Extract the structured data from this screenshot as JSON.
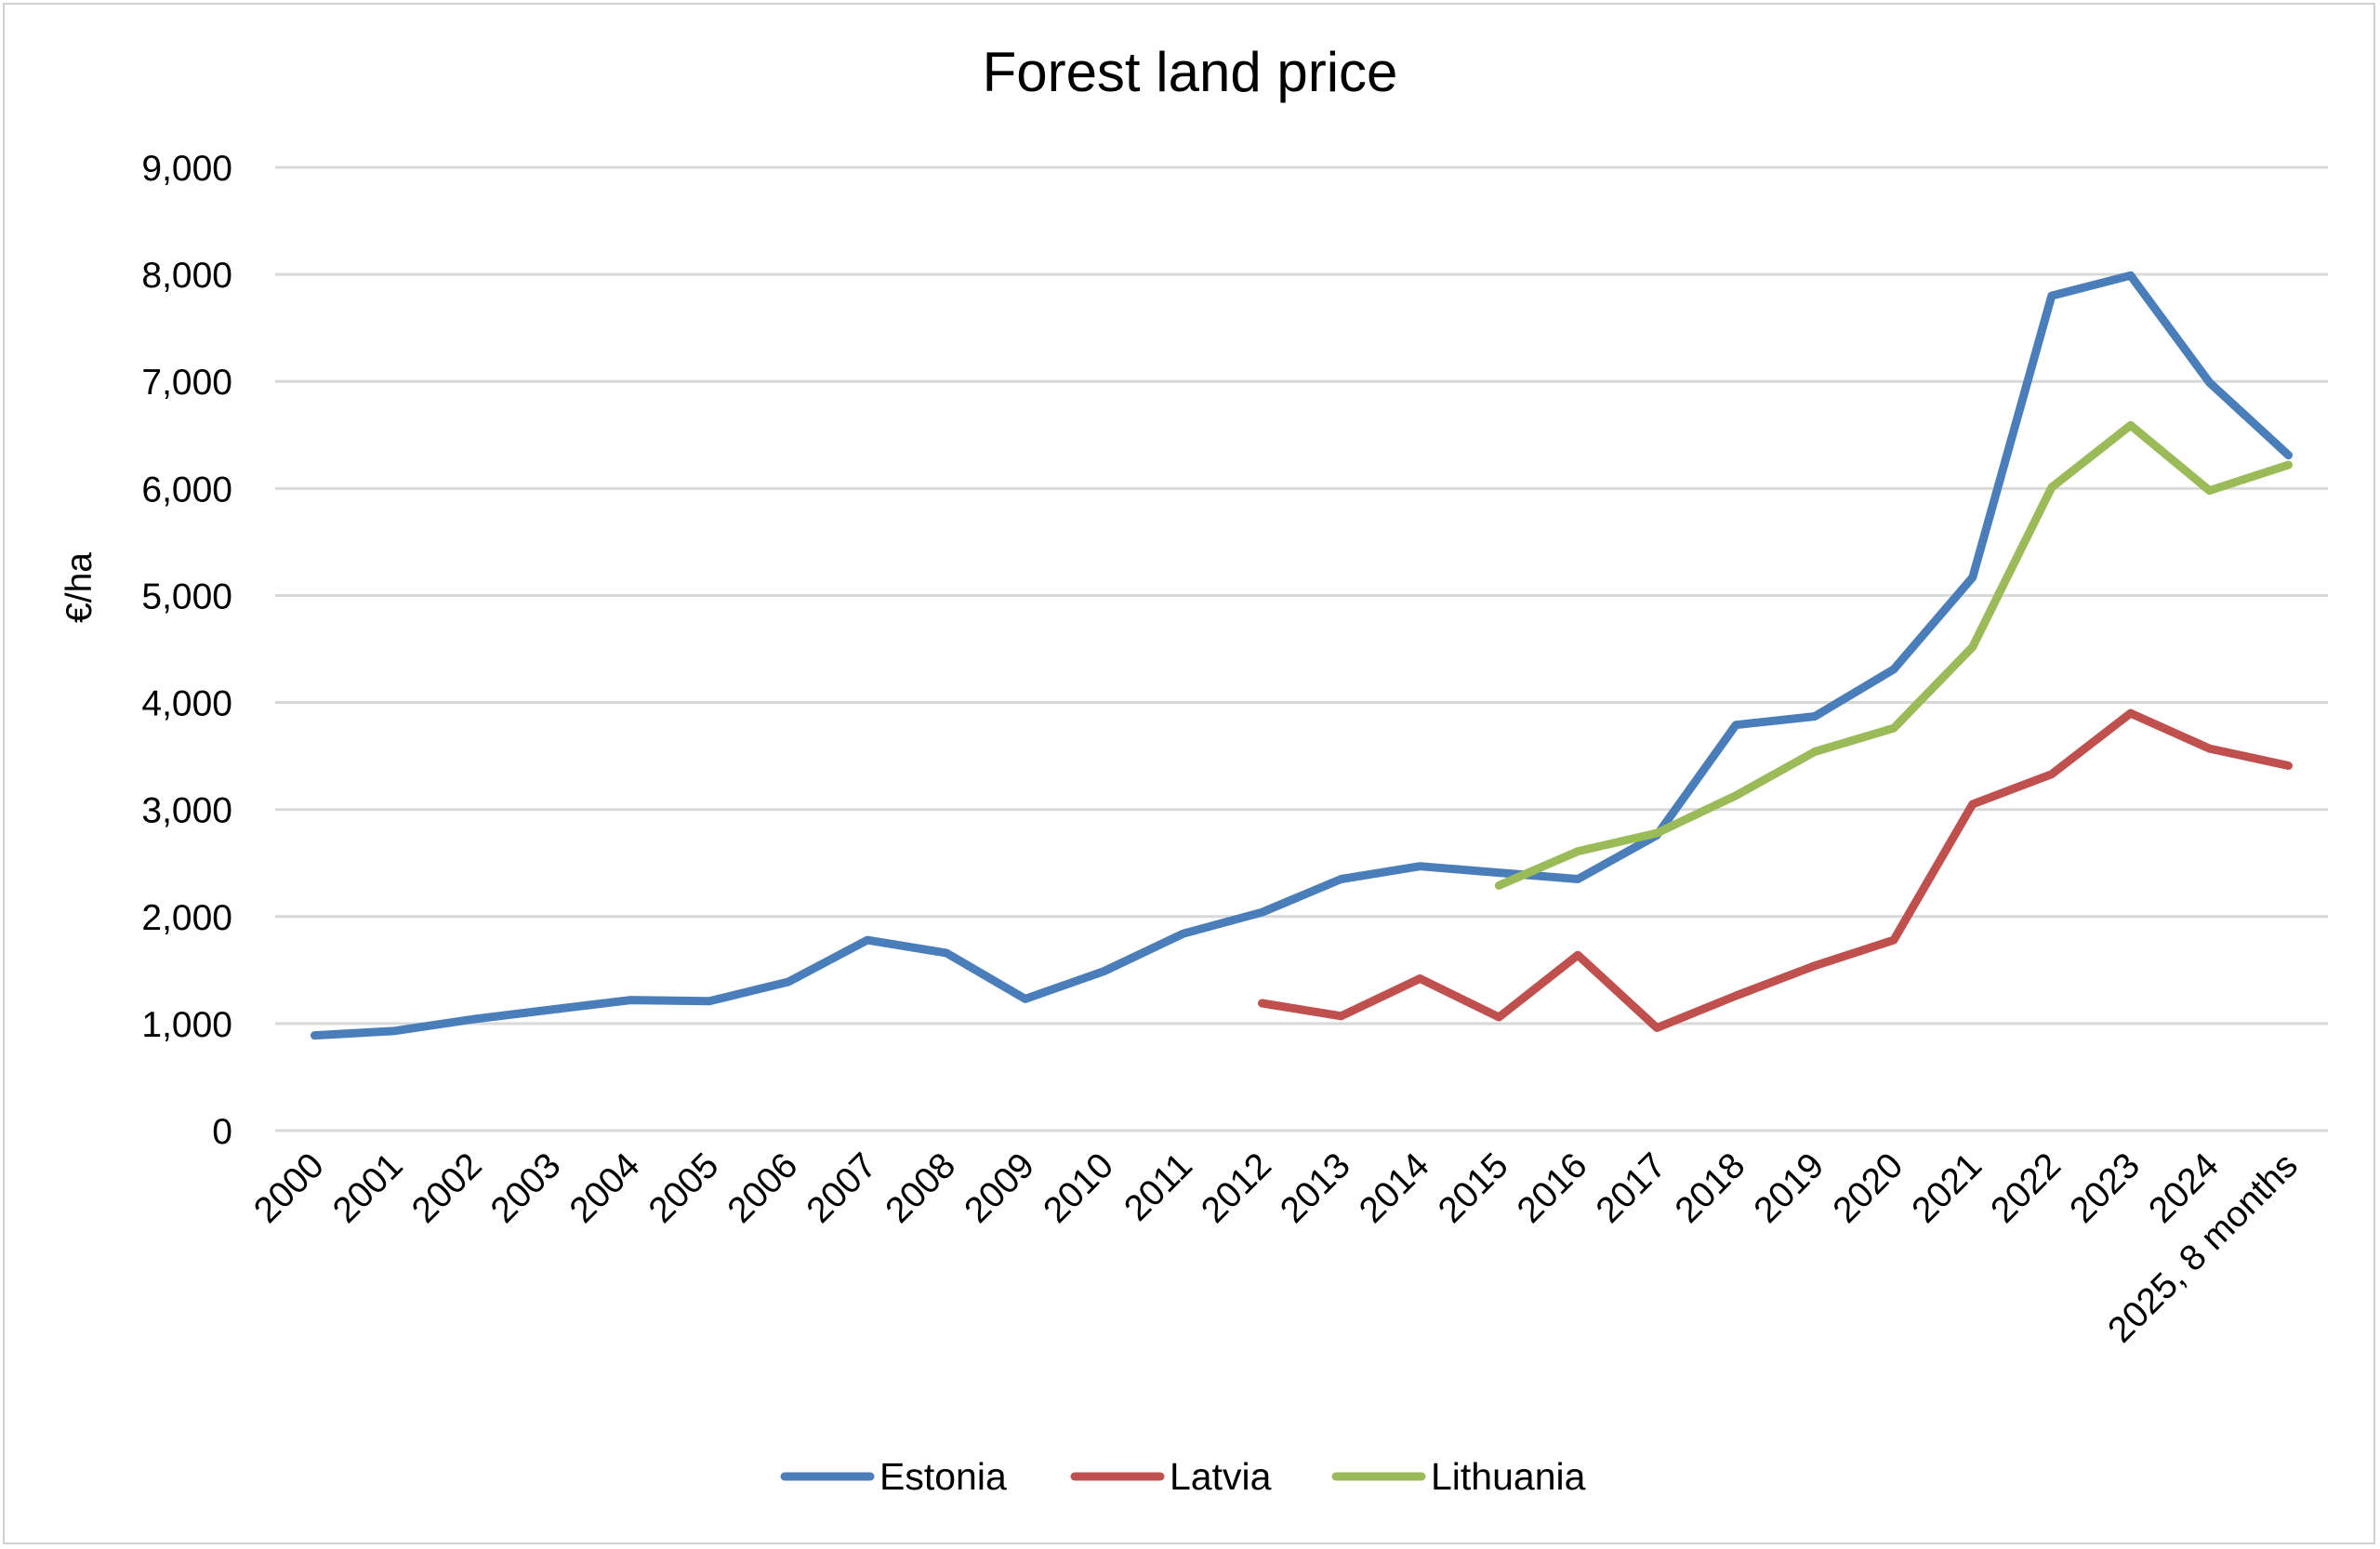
{
  "chart_data": {
    "type": "line",
    "title": "Forest land price",
    "xlabel": "",
    "ylabel": "€/ha",
    "ylim": [
      0,
      9000
    ],
    "yticks": [
      0,
      1000,
      2000,
      3000,
      4000,
      5000,
      6000,
      7000,
      8000,
      9000
    ],
    "ytick_labels": [
      "0",
      "1,000",
      "2,000",
      "3,000",
      "4,000",
      "5,000",
      "6,000",
      "7,000",
      "8,000",
      "9,000"
    ],
    "grid": true,
    "legend_position": "bottom-center",
    "categories": [
      "2000",
      "2001",
      "2002",
      "2003",
      "2004",
      "2005",
      "2006",
      "2007",
      "2008",
      "2009",
      "2010",
      "2011",
      "2012",
      "2013",
      "2014",
      "2015",
      "2016",
      "2017",
      "2018",
      "2019",
      "2020",
      "2021",
      "2022",
      "2023",
      "2024",
      "2025, 8 months"
    ],
    "series": [
      {
        "name": "Estonia",
        "color": "#4a7ebb",
        "values": [
          890,
          930,
          1040,
          1130,
          1220,
          1210,
          1390,
          1780,
          1660,
          1230,
          1490,
          1840,
          2040,
          2350,
          2470,
          2410,
          2350,
          2760,
          3790,
          3870,
          4310,
          5170,
          7800,
          7990,
          6990,
          6310
        ]
      },
      {
        "name": "Latvia",
        "color": "#c0504d",
        "values": [
          null,
          null,
          null,
          null,
          null,
          null,
          null,
          null,
          null,
          null,
          null,
          null,
          1190,
          1070,
          1420,
          1060,
          1640,
          960,
          1260,
          1540,
          1780,
          3050,
          3330,
          3900,
          3570,
          3410
        ]
      },
      {
        "name": "Lithuania",
        "color": "#9bbb59",
        "values": [
          null,
          null,
          null,
          null,
          null,
          null,
          null,
          null,
          null,
          null,
          null,
          null,
          null,
          null,
          null,
          2290,
          2610,
          2780,
          3130,
          3540,
          3760,
          4520,
          6010,
          6590,
          5980,
          6220
        ]
      }
    ]
  }
}
